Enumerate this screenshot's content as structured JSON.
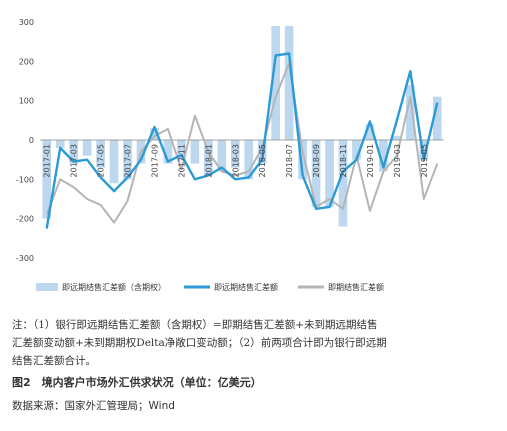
{
  "chart_data": {
    "type": "bar+line",
    "categories": [
      "2017-01",
      "2017-02",
      "2017-03",
      "2017-04",
      "2017-05",
      "2017-06",
      "2017-07",
      "2017-08",
      "2017-09",
      "2017-10",
      "2017-11",
      "2017-12",
      "2018-01",
      "2018-02",
      "2018-03",
      "2018-04",
      "2018-05",
      "2018-06",
      "2018-07",
      "2018-08",
      "2018-09",
      "2018-10",
      "2018-11",
      "2018-12",
      "2019-01",
      "2019-02",
      "2019-03",
      "2019-04",
      "2019-05",
      "2019-06"
    ],
    "tick_labels": [
      "2017-01",
      "2017-03",
      "2017-05",
      "2017-07",
      "2017-09",
      "2017-11",
      "2018-01",
      "2018-03",
      "2018-05",
      "2018-07",
      "2018-09",
      "2018-11",
      "2019-01",
      "2019-03",
      "2019-05"
    ],
    "ylim": [
      -300,
      300
    ],
    "yticks": [
      300,
      200,
      100,
      0,
      -100,
      -200,
      -300
    ],
    "grid": false,
    "legend_position": "bottom",
    "series": [
      {
        "name": "即远期结售汇差额（含期权）",
        "kind": "bar",
        "color": "#bcd7ee",
        "values": [
          -200,
          -20,
          -60,
          -40,
          -70,
          -110,
          -100,
          -60,
          30,
          -60,
          -50,
          -60,
          -90,
          -80,
          -70,
          -100,
          -60,
          290,
          290,
          -100,
          -170,
          -170,
          -220,
          -50,
          40,
          -80,
          10,
          140,
          -50,
          110
        ]
      },
      {
        "name": "即远期结售汇差额",
        "kind": "line",
        "color": "#2b9ad6",
        "values": [
          -225,
          -20,
          -55,
          -50,
          -95,
          -130,
          -95,
          -50,
          33,
          -55,
          -38,
          -100,
          -90,
          -70,
          -100,
          -95,
          -50,
          215,
          220,
          -90,
          -175,
          -170,
          -80,
          -50,
          47,
          -70,
          50,
          175,
          -50,
          95
        ]
      },
      {
        "name": "即期结售汇差额",
        "kind": "line",
        "color": "#b5b5b5",
        "values": [
          -190,
          -100,
          -120,
          -150,
          -165,
          -210,
          -155,
          -30,
          10,
          28,
          -75,
          62,
          -30,
          -80,
          -90,
          -80,
          -20,
          110,
          195,
          -30,
          -170,
          -150,
          -175,
          -40,
          -180,
          -80,
          -40,
          110,
          -150,
          -60
        ]
      }
    ]
  },
  "note": {
    "line1": "注：（1）银行即远期结售汇差额（含期权）=即期结售汇差额+未到期远期结售",
    "line2": "汇差额变动额+未到期期权Delta净敞口变动额；（2）前两项合计即为银行即远期",
    "line3": "结售汇差额合计。"
  },
  "figure_title": "图2　境内客户市场外汇供求状况（单位：亿美元）",
  "source": "数据来源：国家外汇管理局；Wind"
}
